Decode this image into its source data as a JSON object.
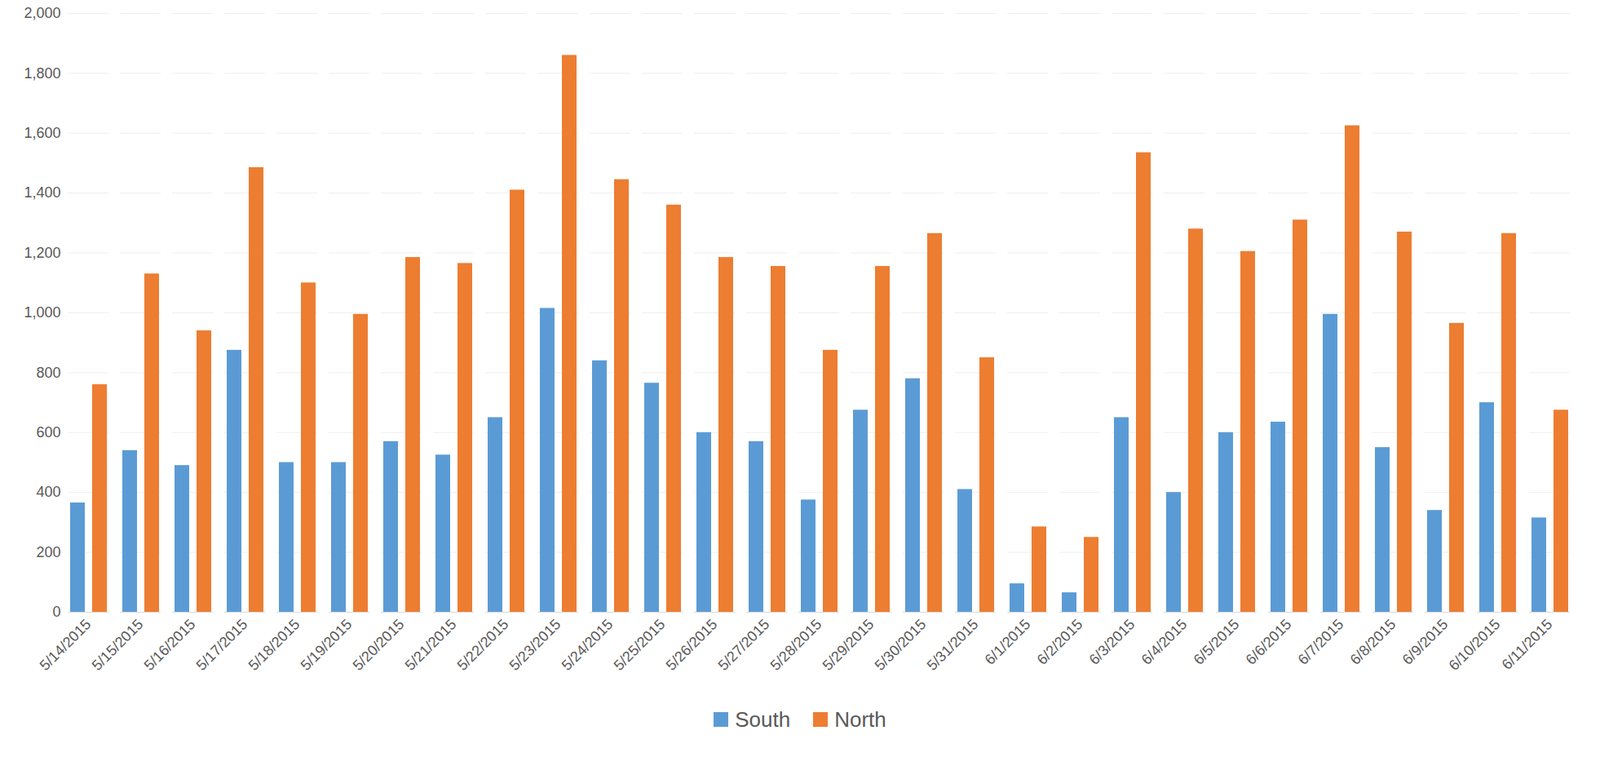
{
  "chart_data": {
    "type": "bar",
    "categories": [
      "5/14/2015",
      "5/15/2015",
      "5/16/2015",
      "5/17/2015",
      "5/18/2015",
      "5/19/2015",
      "5/20/2015",
      "5/21/2015",
      "5/22/2015",
      "5/23/2015",
      "5/24/2015",
      "5/25/2015",
      "5/26/2015",
      "5/27/2015",
      "5/28/2015",
      "5/29/2015",
      "5/30/2015",
      "5/31/2015",
      "6/1/2015",
      "6/2/2015",
      "6/3/2015",
      "6/4/2015",
      "6/5/2015",
      "6/6/2015",
      "6/7/2015",
      "6/8/2015",
      "6/9/2015",
      "6/10/2015",
      "6/11/2015"
    ],
    "series": [
      {
        "name": "South",
        "color": "#5b9bd5",
        "values": [
          365,
          540,
          490,
          875,
          500,
          500,
          570,
          525,
          650,
          1015,
          840,
          765,
          600,
          570,
          375,
          675,
          780,
          410,
          95,
          65,
          650,
          400,
          600,
          635,
          995,
          550,
          340,
          700,
          315
        ]
      },
      {
        "name": "North",
        "color": "#ed7d31",
        "values": [
          760,
          1130,
          940,
          1485,
          1100,
          995,
          1185,
          1165,
          1410,
          1860,
          1445,
          1360,
          1185,
          1155,
          875,
          1155,
          1265,
          850,
          285,
          250,
          1535,
          1280,
          1205,
          1310,
          1625,
          1270,
          965,
          1265,
          675
        ]
      }
    ],
    "ylim": [
      0,
      2000
    ],
    "yticks": [
      0,
      200,
      400,
      600,
      800,
      {
        "value": 1000,
        "label": "1,000"
      },
      {
        "value": 1200,
        "label": "1,200"
      },
      {
        "value": 1400,
        "label": "1,400"
      },
      {
        "value": 1600,
        "label": "1,600"
      },
      {
        "value": 1800,
        "label": "1,800"
      },
      {
        "value": 2000,
        "label": "2,000"
      }
    ],
    "grid": true,
    "legend": "bottom"
  }
}
